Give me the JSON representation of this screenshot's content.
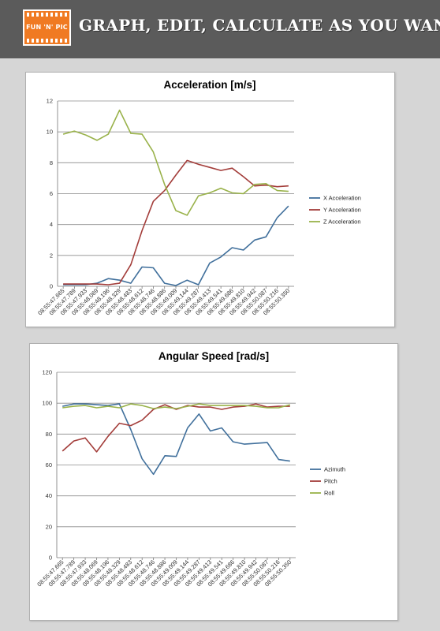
{
  "banner": {
    "logo_text": "FUN 'N' PIC",
    "tagline": "GRAPH, EDIT, CALCULATE AS YOU WANT"
  },
  "colors": {
    "blue": "#41709c",
    "red": "#a33d3a",
    "green": "#99b24a",
    "banner": "#5b5b5b",
    "logo": "#f07a22"
  },
  "chart_data": [
    {
      "type": "line",
      "title": "Acceleration [m/s]",
      "ylim": [
        0,
        12
      ],
      "yticks": [
        0,
        2,
        4,
        6,
        8,
        10,
        12
      ],
      "grid": true,
      "legend_position": "right",
      "categories": [
        "08:55:47.665",
        "08:55:47.789",
        "08:55:47.933",
        "08:55:48.069",
        "08:55:48.196",
        "08:55:48.329",
        "08:55:48.483",
        "08:55:48.612",
        "08:55:48.746",
        "08:55:48.886",
        "08:55:49.009",
        "08:55:49.144",
        "08:55:49.287",
        "08:55:49.413",
        "08:55:49.541",
        "08:55:49.686",
        "08:55:49.810",
        "08:55:49.942",
        "08:55:50.087",
        "08:55:50.216",
        "08:55:50.350"
      ],
      "series": [
        {
          "name": "X Acceleration",
          "color": "#41709c",
          "values": [
            0.1,
            0.1,
            0.1,
            0.2,
            0.5,
            0.4,
            0.2,
            1.25,
            1.2,
            0.2,
            0.05,
            0.4,
            0.1,
            1.5,
            1.9,
            2.5,
            2.35,
            3.0,
            3.2,
            4.45,
            5.2
          ]
        },
        {
          "name": "Y Acceleration",
          "color": "#a33d3a",
          "values": [
            0.15,
            0.15,
            0.15,
            0.15,
            0.1,
            0.2,
            1.4,
            3.6,
            5.5,
            6.2,
            7.2,
            8.15,
            7.9,
            7.7,
            7.5,
            7.65,
            7.1,
            6.5,
            6.55,
            6.45,
            6.5
          ]
        },
        {
          "name": "Z Acceleration",
          "color": "#99b24a",
          "values": [
            9.85,
            10.05,
            9.8,
            9.45,
            9.85,
            11.4,
            9.9,
            9.85,
            8.7,
            6.6,
            4.9,
            4.6,
            5.85,
            6.05,
            6.35,
            6.05,
            6.0,
            6.6,
            6.65,
            6.2,
            6.15
          ]
        }
      ]
    },
    {
      "type": "line",
      "title": "Angular Speed [rad/s]",
      "ylim": [
        0,
        120
      ],
      "yticks": [
        0,
        20,
        40,
        60,
        80,
        100,
        120
      ],
      "grid": true,
      "legend_position": "right",
      "categories": [
        "08:55:47.665",
        "08:55:47.789",
        "08:55:47.933",
        "08:55:48.069",
        "08:55:48.196",
        "08:55:48.329",
        "08:55:48.483",
        "08:55:48.612",
        "08:55:48.746",
        "08:55:48.886",
        "08:55:49.009",
        "08:55:49.144",
        "08:55:49.287",
        "08:55:49.413",
        "08:55:49.541",
        "08:55:49.686",
        "08:55:49.810",
        "08:55:49.942",
        "08:55:50.087",
        "08:55:50.216",
        "08:55:50.350"
      ],
      "series": [
        {
          "name": "Azimuth",
          "color": "#41709c",
          "values": [
            98,
            99.5,
            99.5,
            99,
            98.5,
            99.5,
            83,
            64,
            54,
            66,
            65.5,
            84,
            93,
            82,
            84,
            75,
            73.5,
            74,
            74.5,
            63.5,
            62.5
          ]
        },
        {
          "name": "Pitch",
          "color": "#a33d3a",
          "values": [
            69,
            75.5,
            77.5,
            68.5,
            78.5,
            87,
            85.5,
            89,
            96,
            99,
            96,
            98.5,
            97.5,
            97.5,
            96,
            97.5,
            98,
            99.5,
            97.5,
            98,
            98
          ]
        },
        {
          "name": "Roll",
          "color": "#99b24a",
          "values": [
            97,
            98,
            98.5,
            97,
            98,
            97,
            99.5,
            98.5,
            96.5,
            97.5,
            96.5,
            98,
            99.5,
            98.5,
            98.5,
            98.5,
            98.5,
            98,
            97,
            97,
            99
          ]
        }
      ]
    }
  ]
}
